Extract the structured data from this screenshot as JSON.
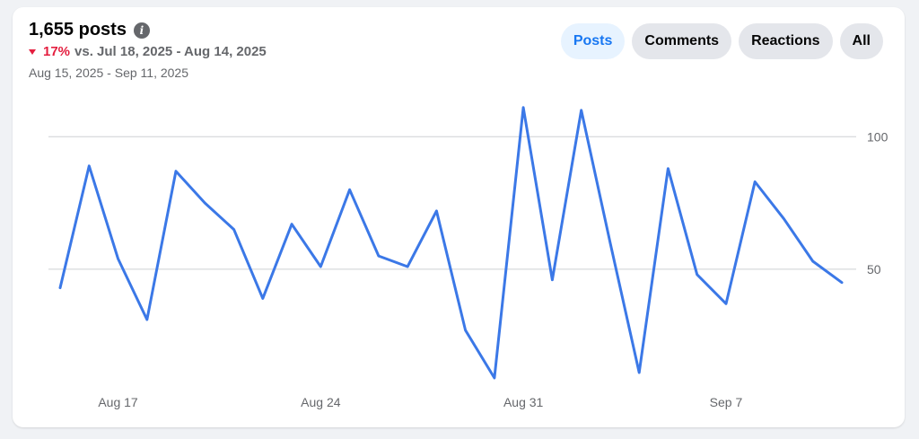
{
  "header": {
    "title": "1,655 posts",
    "change_pct": "17%",
    "change_text": "vs. Jul 18, 2025 - Aug 14, 2025",
    "date_range": "Aug 15, 2025 - Sep 11, 2025"
  },
  "tabs": [
    {
      "label": "Posts",
      "active": true
    },
    {
      "label": "Comments",
      "active": false
    },
    {
      "label": "Reactions",
      "active": false
    },
    {
      "label": "All",
      "active": false
    }
  ],
  "colors": {
    "line": "#3b78e7",
    "down": "#e41e3f",
    "accent": "#1877f2"
  },
  "chart_data": {
    "type": "line",
    "title": "",
    "xlabel": "",
    "ylabel": "",
    "x_tick_labels": [
      "Aug 17",
      "Aug 24",
      "Aug 31",
      "Sep 7"
    ],
    "y_ticks": [
      50,
      100
    ],
    "ylim": [
      10,
      115
    ],
    "grid": true,
    "series": [
      {
        "x": [
          "Aug 15",
          "Aug 16",
          "Aug 17",
          "Aug 18",
          "Aug 19",
          "Aug 20",
          "Aug 21",
          "Aug 22",
          "Aug 23",
          "Aug 24",
          "Aug 25",
          "Aug 26",
          "Aug 27",
          "Aug 28",
          "Aug 29",
          "Aug 30",
          "Aug 31",
          "Sep 1",
          "Sep 2",
          "Sep 3",
          "Sep 4",
          "Sep 5",
          "Sep 6",
          "Sep 7",
          "Sep 8",
          "Sep 9",
          "Sep 10",
          "Sep 11"
        ],
        "values": [
          43,
          89,
          54,
          31,
          87,
          75,
          65,
          39,
          67,
          51,
          80,
          55,
          51,
          72,
          27,
          9,
          111,
          46,
          110,
          60,
          11,
          88,
          48,
          37,
          83,
          69,
          53,
          45
        ]
      }
    ]
  }
}
